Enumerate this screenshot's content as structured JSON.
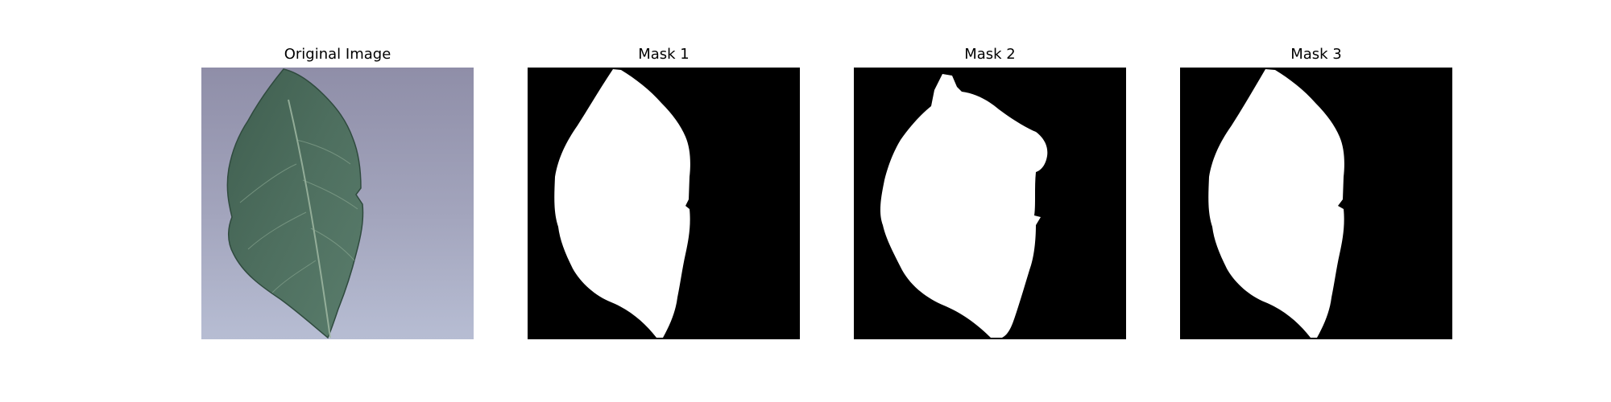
{
  "panels": [
    {
      "title": "Original Image",
      "content": "photo"
    },
    {
      "title": "Mask 1",
      "content": "mask"
    },
    {
      "title": "Mask 2",
      "content": "mask"
    },
    {
      "title": "Mask 3",
      "content": "mask"
    }
  ],
  "colors": {
    "background": "#ffffff",
    "mask_background": "#000000",
    "mask_foreground": "#ffffff",
    "leaf": "#4a6a5a",
    "surface": "#a7aabf"
  }
}
